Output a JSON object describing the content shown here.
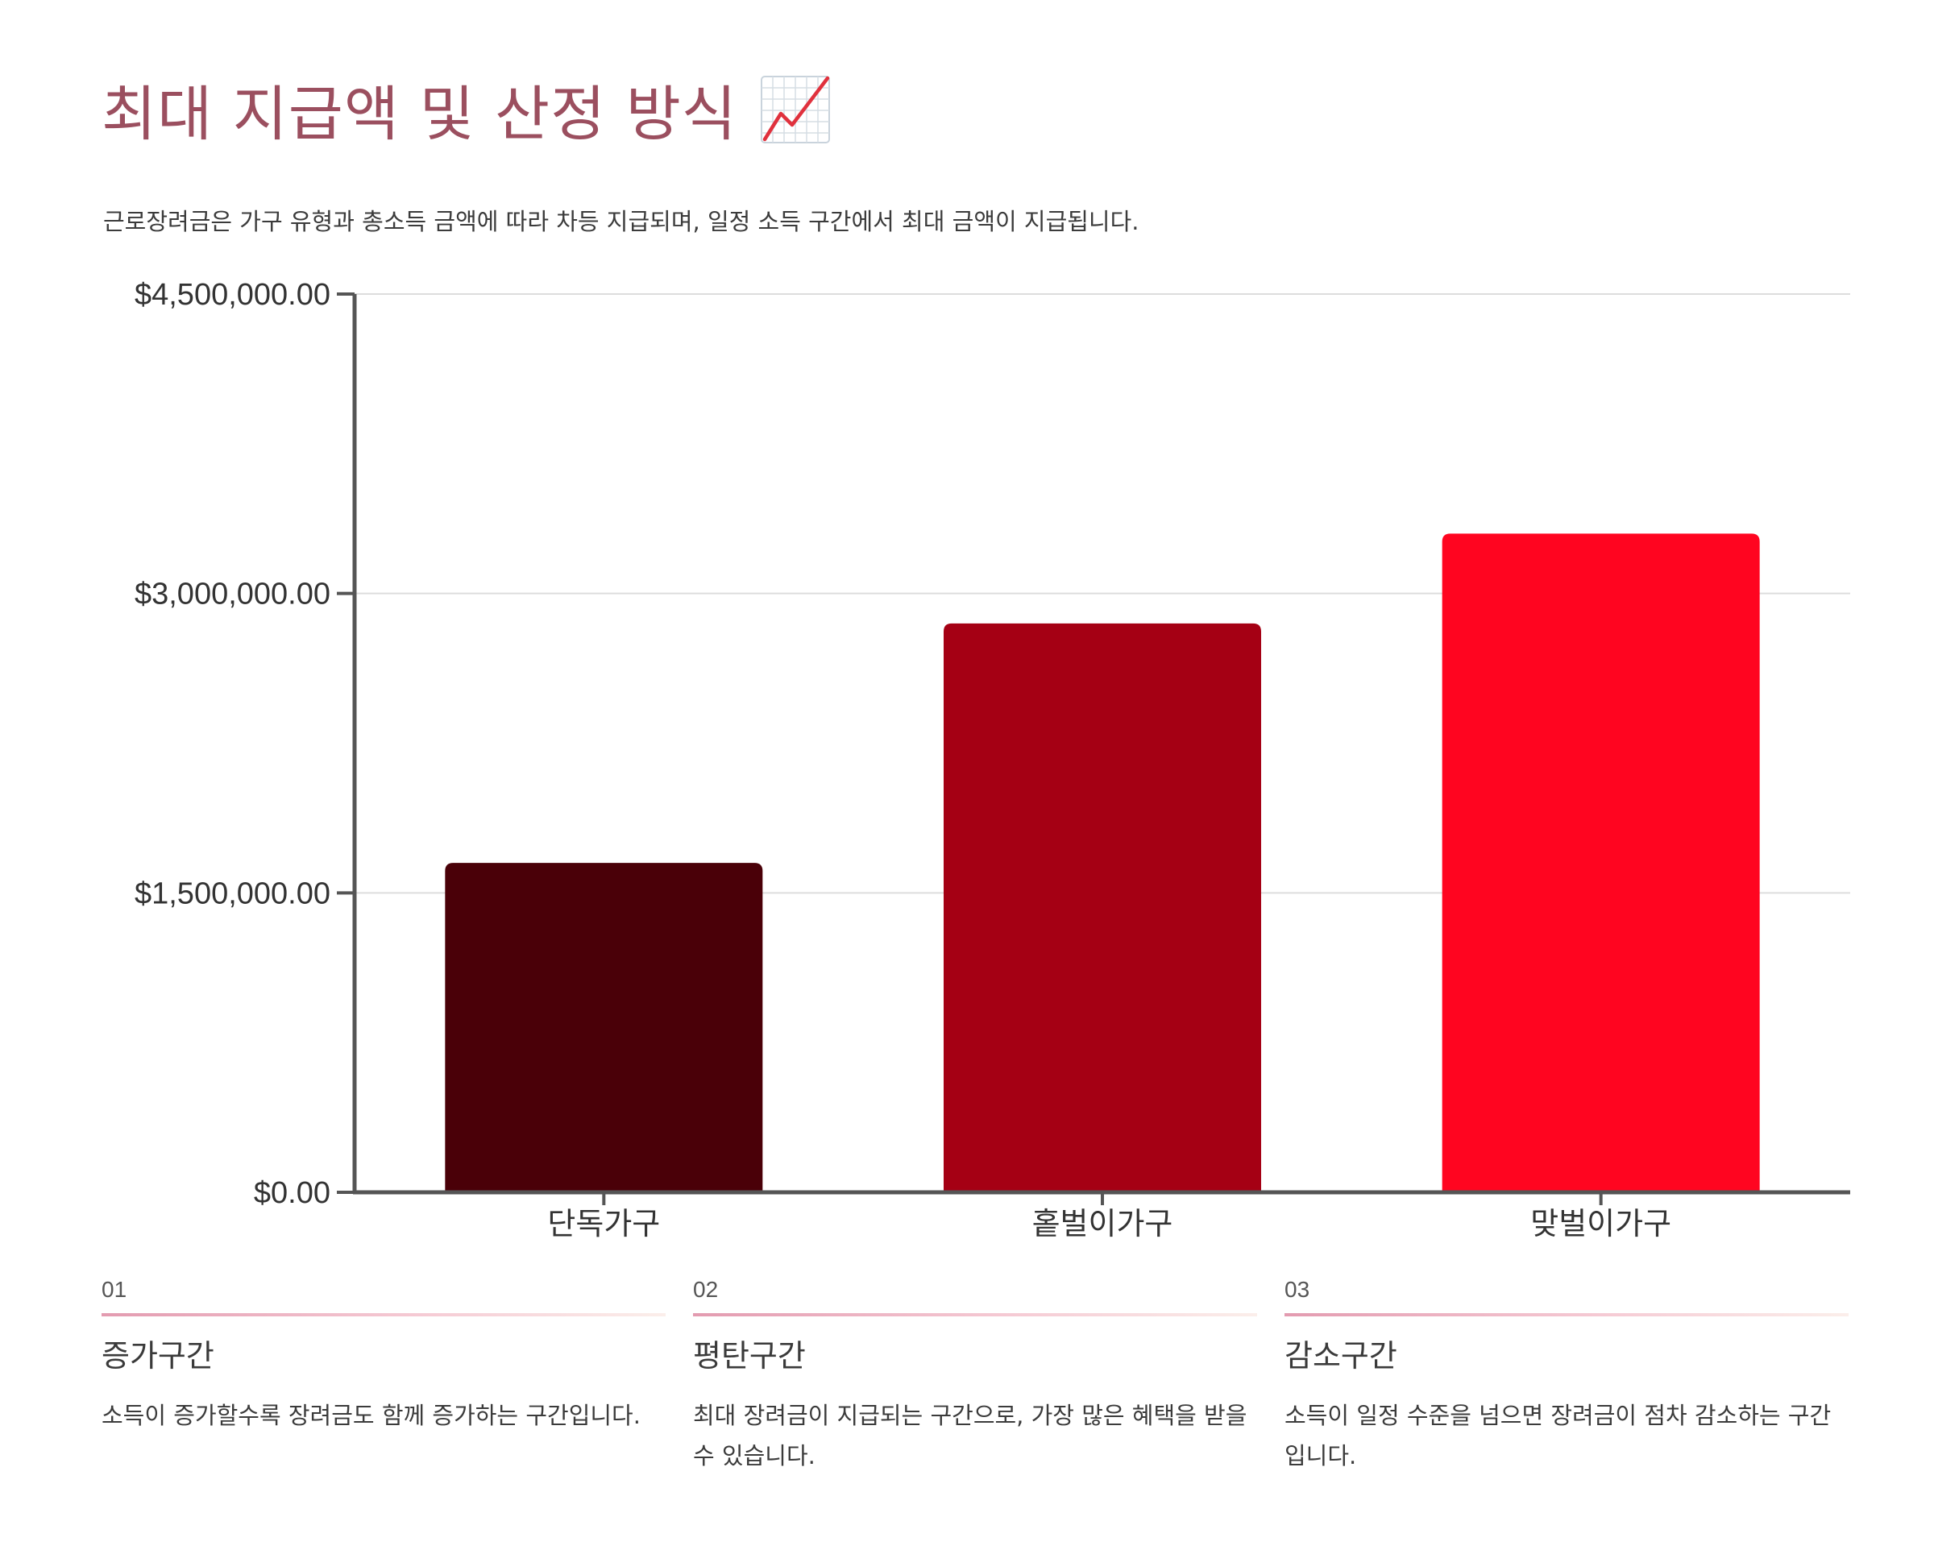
{
  "header": {
    "title": "최대 지급액 및 산정 방식",
    "title_icon": "chart-increasing-icon",
    "subtitle": "근로장려금은 가구 유형과 총소득 금액에 따라 차등 지급되며, 일정 소득 구간에서 최대 금액이 지급됩니다."
  },
  "colors": {
    "title": "#9b4f5f",
    "bars": [
      "#4a0008",
      "#a50014",
      "#ff0520"
    ],
    "axis": "#555555",
    "grid": "#dddddd"
  },
  "chart_data": {
    "type": "bar",
    "categories": [
      "단독가구",
      "홑벌이가구",
      "맞벌이가구"
    ],
    "values": [
      1650000,
      2850000,
      3300000
    ],
    "ylim": [
      0,
      4500000
    ],
    "yticks": [
      0,
      1500000,
      3000000,
      4500000
    ],
    "ytick_labels": [
      "$0.00",
      "$1,500,000.00",
      "$3,000,000.00",
      "$4,500,000.00"
    ],
    "grid": true,
    "legend": "none",
    "xlabel": "",
    "ylabel": ""
  },
  "cards": [
    {
      "number": "01",
      "title": "증가구간",
      "description": "소득이 증가할수록 장려금도 함께 증가하는 구간입니다."
    },
    {
      "number": "02",
      "title": "평탄구간",
      "description": "최대 장려금이 지급되는 구간으로, 가장 많은 혜택을 받을 수 있습니다."
    },
    {
      "number": "03",
      "title": "감소구간",
      "description": "소득이 일정 수준을 넘으면 장려금이 점차 감소하는 구간입니다."
    }
  ]
}
